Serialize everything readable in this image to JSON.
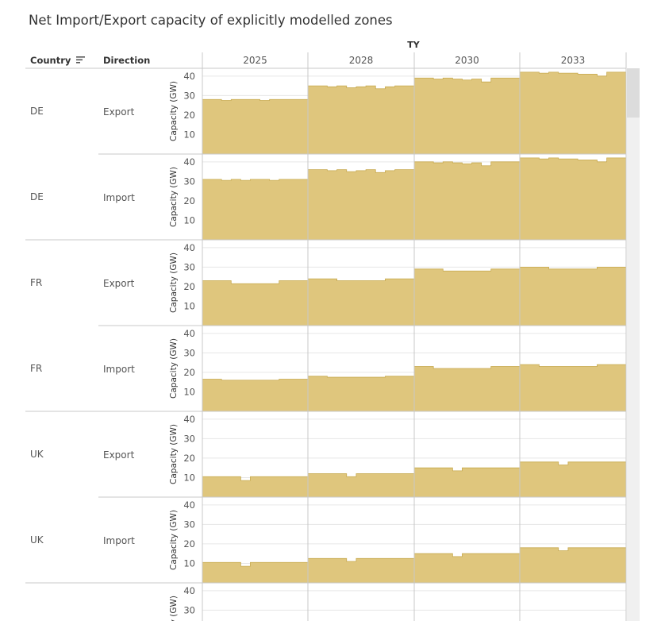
{
  "title": "Net Import/Export capacity of explicitly modelled zones",
  "headers": {
    "column_group": "TY",
    "country": "Country",
    "direction": "Direction",
    "sort_icon": "sort-descending-icon"
  },
  "colors": {
    "area": "#dfc67d",
    "area_edge": "#c7a94e",
    "grid": "#e6e6e6",
    "divider": "#c8c8c8"
  },
  "chart_data": {
    "type": "area",
    "columns": [
      "2025",
      "2028",
      "2030",
      "2033"
    ],
    "ylabel": "Capacity (GW)",
    "yticks": [
      10,
      20,
      30,
      40
    ],
    "ylim": [
      0,
      44
    ],
    "grid": true,
    "panels": [
      {
        "country": "DE",
        "direction": "Export",
        "values": {
          "2025": [
            28,
            28,
            27.5,
            28,
            28,
            28,
            27.5,
            28,
            28,
            28,
            28
          ],
          "2028": [
            35,
            35,
            34.5,
            35,
            34,
            34.5,
            35,
            33.5,
            34.5,
            35,
            35
          ],
          "2030": [
            39,
            39,
            38.5,
            39,
            38.5,
            38,
            38.5,
            37,
            39,
            39,
            39
          ],
          "2033": [
            42,
            42,
            41.5,
            42,
            41.5,
            41.5,
            41,
            41,
            40,
            42,
            42
          ]
        }
      },
      {
        "country": "DE",
        "direction": "Import",
        "values": {
          "2025": [
            31,
            31,
            30.5,
            31,
            30.5,
            31,
            31,
            30.5,
            31,
            31,
            31
          ],
          "2028": [
            36,
            36,
            35.5,
            36,
            35,
            35.5,
            36,
            34.5,
            35.5,
            36,
            36
          ],
          "2030": [
            40,
            40,
            39.5,
            40,
            39.5,
            39,
            39.5,
            38,
            40,
            40,
            40
          ],
          "2033": [
            42,
            42,
            41.5,
            42,
            41.5,
            41.5,
            41,
            41,
            40,
            42,
            42
          ]
        }
      },
      {
        "country": "FR",
        "direction": "Export",
        "values": {
          "2025": [
            23,
            23,
            23,
            21.5,
            21.5,
            21.5,
            21.5,
            21.5,
            23,
            23,
            23
          ],
          "2028": [
            24,
            24,
            24,
            23,
            23,
            23,
            23,
            23,
            24,
            24,
            24
          ],
          "2030": [
            29,
            29,
            29,
            28,
            28,
            28,
            28,
            28,
            29,
            29,
            29
          ],
          "2033": [
            30,
            30,
            30,
            29,
            29,
            29,
            29,
            29,
            30,
            30,
            30
          ]
        }
      },
      {
        "country": "FR",
        "direction": "Import",
        "values": {
          "2025": [
            16.5,
            16.5,
            16,
            16,
            16,
            16,
            16,
            16,
            16.5,
            16.5,
            16.5
          ],
          "2028": [
            18,
            18,
            17.5,
            17.5,
            17.5,
            17.5,
            17.5,
            17.5,
            18,
            18,
            18
          ],
          "2030": [
            23,
            23,
            22,
            22,
            22,
            22,
            22,
            22,
            23,
            23,
            23
          ],
          "2033": [
            24,
            24,
            23,
            23,
            23,
            23,
            23,
            23,
            24,
            24,
            24
          ]
        }
      },
      {
        "country": "UK",
        "direction": "Export",
        "values": {
          "2025": [
            10.5,
            10.5,
            10.5,
            10.5,
            8.5,
            10.5,
            10.5,
            10.5,
            10.5,
            10.5,
            10.5
          ],
          "2028": [
            12,
            12,
            12,
            12,
            10.5,
            12,
            12,
            12,
            12,
            12,
            12
          ],
          "2030": [
            15,
            15,
            15,
            15,
            13.5,
            15,
            15,
            15,
            15,
            15,
            15
          ],
          "2033": [
            18,
            18,
            18,
            18,
            16.5,
            18,
            18,
            18,
            18,
            18,
            18
          ]
        }
      },
      {
        "country": "UK",
        "direction": "Import",
        "values": {
          "2025": [
            10.5,
            10.5,
            10.5,
            10.5,
            8.5,
            10.5,
            10.5,
            10.5,
            10.5,
            10.5,
            10.5
          ],
          "2028": [
            12.5,
            12.5,
            12.5,
            12.5,
            11,
            12.5,
            12.5,
            12.5,
            12.5,
            12.5,
            12.5
          ],
          "2030": [
            15,
            15,
            15,
            15,
            13.5,
            15,
            15,
            15,
            15,
            15,
            15
          ],
          "2033": [
            18,
            18,
            18,
            18,
            16.5,
            18,
            18,
            18,
            18,
            18,
            18
          ]
        }
      },
      {
        "country": "",
        "direction": "",
        "values": {}
      }
    ]
  }
}
